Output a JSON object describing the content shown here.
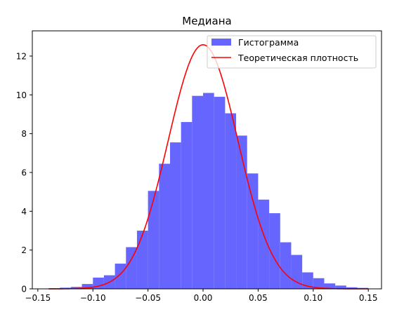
{
  "chart_data": {
    "type": "bar",
    "title": "Медиана",
    "xlabel": "",
    "ylabel": "",
    "xlim": [
      -0.155,
      0.162
    ],
    "ylim": [
      0,
      13.3
    ],
    "xticks": [
      -0.15,
      -0.1,
      -0.05,
      0.0,
      0.05,
      0.1,
      0.15
    ],
    "xtick_labels": [
      "−0.15",
      "−0.10",
      "−0.05",
      "0.00",
      "0.05",
      "0.10",
      "0.15"
    ],
    "yticks": [
      0,
      2,
      4,
      6,
      8,
      10,
      12
    ],
    "ytick_labels": [
      "0",
      "2",
      "4",
      "6",
      "8",
      "10",
      "12"
    ],
    "grid": false,
    "legend_position": "top-right",
    "series": [
      {
        "name": "Гистограмма",
        "kind": "histogram",
        "color": "#6666ff",
        "bin_edges": [
          -0.14,
          -0.13,
          -0.12,
          -0.11,
          -0.1,
          -0.09,
          -0.08,
          -0.07,
          -0.06,
          -0.05,
          -0.04,
          -0.03,
          -0.02,
          -0.01,
          0.0,
          0.01,
          0.02,
          0.03,
          0.04,
          0.05,
          0.06,
          0.07,
          0.08,
          0.09,
          0.1,
          0.11,
          0.12,
          0.13,
          0.14,
          0.15
        ],
        "values": [
          0.03,
          0.06,
          0.1,
          0.25,
          0.58,
          0.7,
          1.3,
          2.15,
          3.0,
          5.05,
          6.45,
          7.55,
          8.6,
          9.95,
          10.1,
          9.9,
          9.05,
          7.9,
          5.95,
          4.6,
          3.9,
          2.4,
          1.75,
          0.85,
          0.55,
          0.28,
          0.17,
          0.08,
          0.05
        ]
      },
      {
        "name": "Теоретическая плотность",
        "kind": "line",
        "color": "#ff0000",
        "distribution": "normal",
        "mean": 0.0,
        "std": 0.0317,
        "x_range": [
          -0.14,
          0.15
        ]
      }
    ]
  }
}
